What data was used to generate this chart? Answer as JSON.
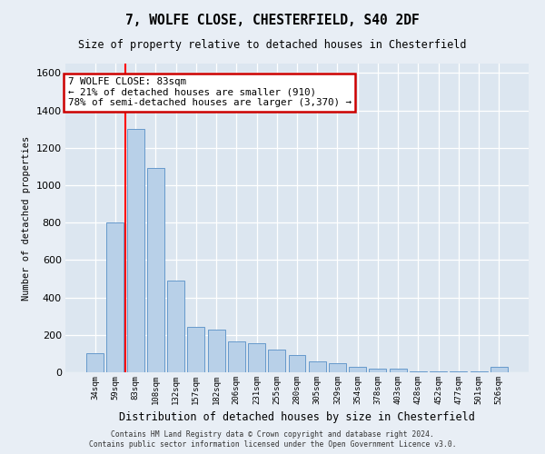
{
  "title": "7, WOLFE CLOSE, CHESTERFIELD, S40 2DF",
  "subtitle": "Size of property relative to detached houses in Chesterfield",
  "xlabel": "Distribution of detached houses by size in Chesterfield",
  "ylabel": "Number of detached properties",
  "categories": [
    "34sqm",
    "59sqm",
    "83sqm",
    "108sqm",
    "132sqm",
    "157sqm",
    "182sqm",
    "206sqm",
    "231sqm",
    "255sqm",
    "280sqm",
    "305sqm",
    "329sqm",
    "354sqm",
    "378sqm",
    "403sqm",
    "428sqm",
    "452sqm",
    "477sqm",
    "501sqm",
    "526sqm"
  ],
  "values": [
    100,
    800,
    1300,
    1090,
    490,
    245,
    230,
    165,
    155,
    120,
    90,
    60,
    50,
    30,
    20,
    20,
    5,
    5,
    5,
    5,
    30
  ],
  "bar_color": "#b8d0e8",
  "bar_edge_color": "#6699cc",
  "red_line_x": 1.5,
  "annotation_text": "7 WOLFE CLOSE: 83sqm\n← 21% of detached houses are smaller (910)\n78% of semi-detached houses are larger (3,370) →",
  "annotation_box_color": "#ffffff",
  "annotation_box_edge_color": "#cc0000",
  "ylim": [
    0,
    1650
  ],
  "yticks": [
    0,
    200,
    400,
    600,
    800,
    1000,
    1200,
    1400,
    1600
  ],
  "background_color": "#e8eef5",
  "plot_background_color": "#dce6f0",
  "grid_color": "#ffffff",
  "footer_line1": "Contains HM Land Registry data © Crown copyright and database right 2024.",
  "footer_line2": "Contains public sector information licensed under the Open Government Licence v3.0."
}
